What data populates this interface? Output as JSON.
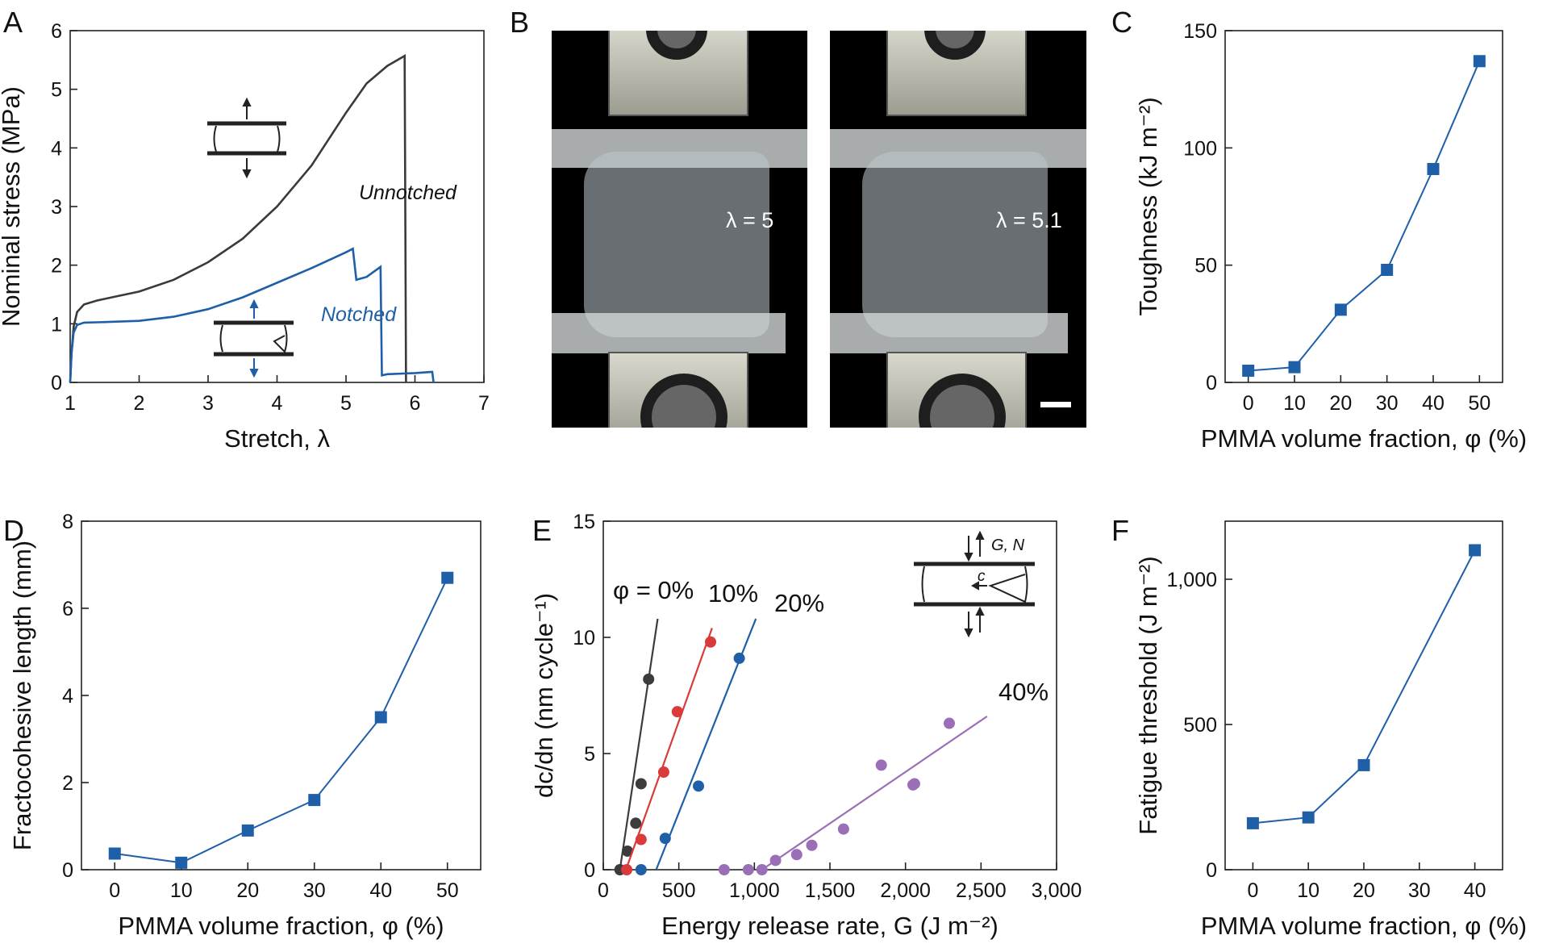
{
  "panels": {
    "A": {
      "letter": "A"
    },
    "B": {
      "letter": "B"
    },
    "C": {
      "letter": "C"
    },
    "D": {
      "letter": "D"
    },
    "E": {
      "letter": "E"
    },
    "F": {
      "letter": "F"
    }
  },
  "photo_labels": {
    "left": "λ = 5",
    "right": "λ = 5.1"
  },
  "chart_data": [
    {
      "id": "A",
      "type": "line",
      "xlabel": "Stretch, λ",
      "ylabel": "Nominal stress (MPa)",
      "xlim": [
        1,
        7
      ],
      "ylim": [
        0,
        6
      ],
      "xticks": [
        "1",
        "2",
        "3",
        "4",
        "5",
        "6",
        "7"
      ],
      "yticks": [
        "0",
        "1",
        "2",
        "3",
        "4",
        "5",
        "6"
      ],
      "series": [
        {
          "name": "Unnotched",
          "color": "#3a3a3a",
          "x": [
            1.0,
            1.02,
            1.05,
            1.1,
            1.2,
            1.4,
            1.6,
            2.0,
            2.5,
            3.0,
            3.5,
            4.0,
            4.5,
            5.0,
            5.3,
            5.6,
            5.85,
            5.86,
            5.87
          ],
          "y": [
            0,
            0.5,
            0.95,
            1.2,
            1.33,
            1.4,
            1.45,
            1.55,
            1.75,
            2.05,
            2.45,
            3.0,
            3.7,
            4.6,
            5.1,
            5.4,
            5.57,
            3.0,
            0
          ]
        },
        {
          "name": "Notched",
          "color": "#1f5fa8",
          "x": [
            1.0,
            1.02,
            1.05,
            1.1,
            1.2,
            1.5,
            2.0,
            2.5,
            3.0,
            3.5,
            4.0,
            4.5,
            5.0,
            5.1,
            5.15,
            5.3,
            5.5,
            5.52,
            5.6,
            6.0,
            6.25,
            6.27
          ],
          "y": [
            0,
            0.5,
            0.85,
            0.98,
            1.02,
            1.03,
            1.05,
            1.12,
            1.25,
            1.45,
            1.7,
            1.95,
            2.22,
            2.28,
            1.75,
            1.8,
            1.97,
            0.12,
            0.14,
            0.16,
            0.18,
            0
          ]
        }
      ],
      "annotations": [
        {
          "text": "Unnotched",
          "color": "#111111"
        },
        {
          "text": "Notched",
          "color": "#1f5fa8"
        }
      ]
    },
    {
      "id": "C",
      "type": "line",
      "xlabel": "PMMA volume fraction, φ (%)",
      "ylabel": "Toughness (kJ m⁻²)",
      "xlim": [
        -5,
        55
      ],
      "ylim": [
        0,
        150
      ],
      "xticks": [
        "0",
        "10",
        "20",
        "30",
        "40",
        "50"
      ],
      "yticks": [
        "0",
        "50",
        "100",
        "150"
      ],
      "series": [
        {
          "color": "#1f5fa8",
          "x": [
            0,
            10,
            20,
            30,
            40,
            50
          ],
          "values": [
            5,
            6.5,
            31,
            48,
            91,
            137
          ]
        }
      ]
    },
    {
      "id": "D",
      "type": "line",
      "xlabel": "PMMA volume fraction, φ (%)",
      "ylabel": "Fractocohesive length (mm)",
      "xlim": [
        -5,
        55
      ],
      "ylim": [
        0,
        8
      ],
      "xticks": [
        "0",
        "10",
        "20",
        "30",
        "40",
        "50"
      ],
      "yticks": [
        "0",
        "2",
        "4",
        "6",
        "8"
      ],
      "series": [
        {
          "color": "#1f5fa8",
          "x": [
            0,
            10,
            20,
            30,
            40,
            50
          ],
          "values": [
            0.37,
            0.16,
            0.9,
            1.6,
            3.5,
            6.7
          ]
        }
      ]
    },
    {
      "id": "E",
      "type": "scatter",
      "xlabel": "Energy release rate, G (J m⁻²)",
      "ylabel": "dc/dn (nm cycle⁻¹)",
      "xlim": [
        0,
        3000
      ],
      "ylim": [
        0,
        15
      ],
      "xticks": [
        "0",
        "500",
        "1,000",
        "1,500",
        "2,000",
        "2,500",
        "3,000"
      ],
      "yticks": [
        "0",
        "5",
        "10",
        "15"
      ],
      "inset_labels": {
        "top": "G, N",
        "crack": "c"
      },
      "series": [
        {
          "name": "φ = 0%",
          "color": "#3c3c3c",
          "x": [
            110,
            160,
            215,
            250,
            300
          ],
          "y": [
            0,
            0.8,
            2.0,
            3.7,
            8.2
          ],
          "fit": [
            [
              110,
              0
            ],
            [
              360,
              10.8
            ]
          ]
        },
        {
          "name": "10%",
          "color": "#d93a3a",
          "x": [
            155,
            250,
            400,
            490,
            710
          ],
          "y": [
            0,
            1.3,
            4.2,
            6.8,
            9.8
          ],
          "fit": [
            [
              150,
              0
            ],
            [
              720,
              10.4
            ]
          ]
        },
        {
          "name": "20%",
          "color": "#1f5fa8",
          "x": [
            250,
            410,
            630,
            900
          ],
          "y": [
            0,
            1.35,
            3.6,
            9.1
          ],
          "fit": [
            [
              350,
              0
            ],
            [
              1010,
              10.8
            ]
          ]
        },
        {
          "name": "40%",
          "color": "#9a6fb8",
          "x": [
            800,
            960,
            1050,
            1140,
            1280,
            1380,
            1590,
            1840,
            2050,
            2060,
            2290
          ],
          "y": [
            0,
            0,
            0,
            0.4,
            0.65,
            1.05,
            1.75,
            4.5,
            3.65,
            3.7,
            6.3
          ],
          "fit": [
            [
              1050,
              0
            ],
            [
              2540,
              6.6
            ]
          ]
        }
      ]
    },
    {
      "id": "F",
      "type": "line",
      "xlabel": "PMMA volume fraction, φ (%)",
      "ylabel": "Fatigue threshold (J m⁻²)",
      "xlim": [
        -5,
        45
      ],
      "ylim": [
        0,
        1200
      ],
      "xticks": [
        "0",
        "10",
        "20",
        "30",
        "40"
      ],
      "yticks": [
        "0",
        "500",
        "1,000"
      ],
      "series": [
        {
          "color": "#1f5fa8",
          "x": [
            0,
            10,
            20,
            40
          ],
          "values": [
            160,
            180,
            360,
            1100
          ]
        }
      ]
    }
  ]
}
